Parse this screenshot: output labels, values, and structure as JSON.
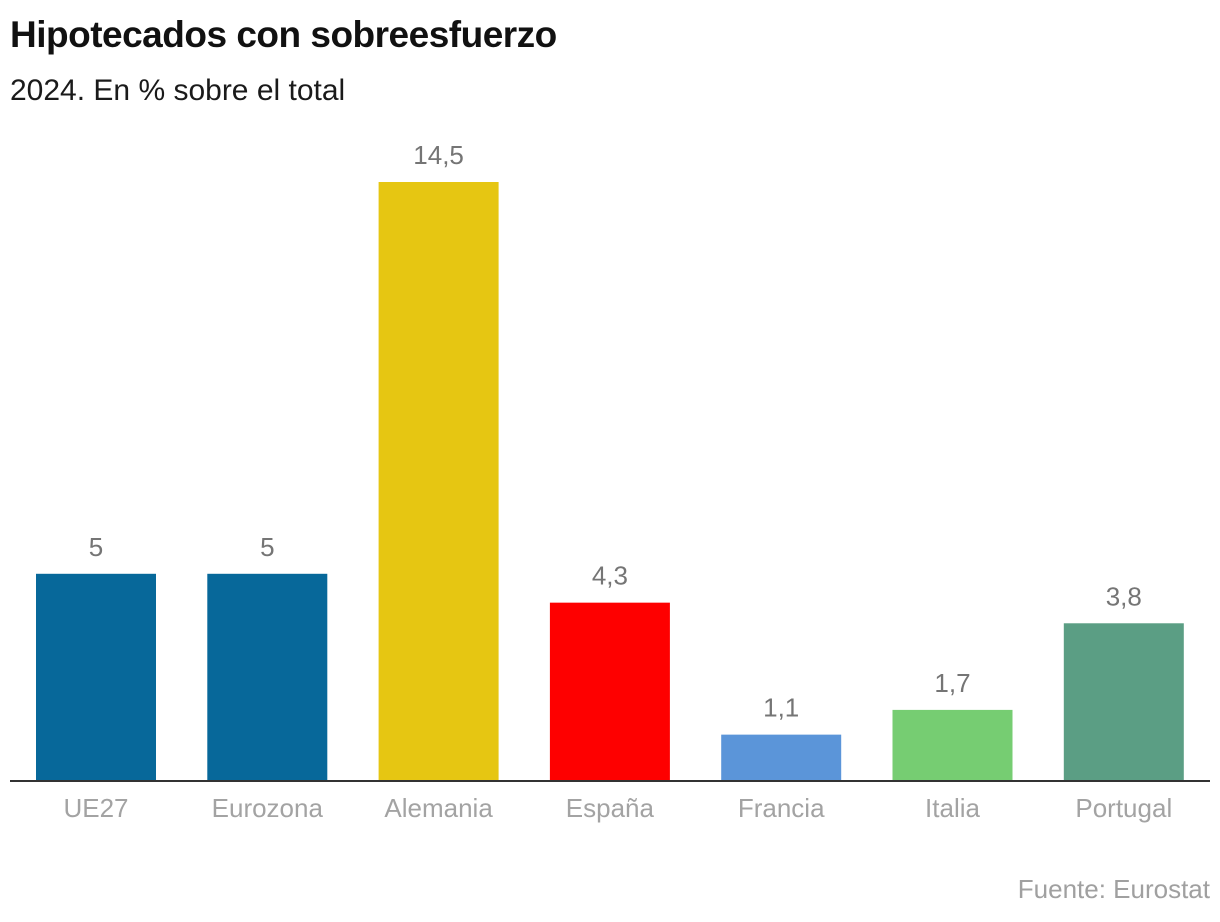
{
  "header": {
    "title": "Hipotecados con sobreesfuerzo",
    "subtitle": "2024. En % sobre el total"
  },
  "footer": {
    "source": "Fuente: Eurostat"
  },
  "chart_data": {
    "type": "bar",
    "title": "Hipotecados con sobreesfuerzo",
    "subtitle": "2024. En % sobre el total",
    "xlabel": "",
    "ylabel": "% sobre el total",
    "categories": [
      "UE27",
      "Eurozona",
      "Alemania",
      "España",
      "Francia",
      "Italia",
      "Portugal"
    ],
    "values": [
      5,
      5,
      14.5,
      4.3,
      1.1,
      1.7,
      3.8
    ],
    "value_labels": [
      "5",
      "5",
      "14,5",
      "4,3",
      "1,1",
      "1,7",
      "3,8"
    ],
    "colors": [
      "#07689a",
      "#07689a",
      "#e6c612",
      "#fe0000",
      "#5b95d9",
      "#76cd72",
      "#5b9e84"
    ],
    "ylim": [
      0,
      14.5
    ],
    "grid": false,
    "legend": "none",
    "source": "Fuente: Eurostat"
  }
}
